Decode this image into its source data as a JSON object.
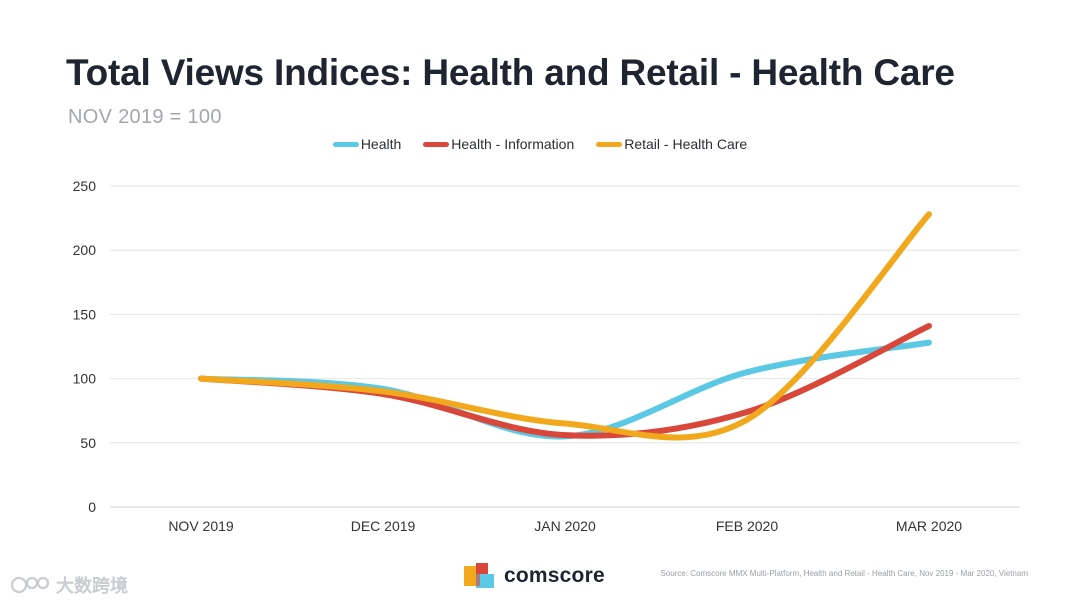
{
  "title": "Total Views Indices: Health and Retail - Health Care",
  "subtitle": "NOV 2019 = 100",
  "colors": {
    "health": "#5bc8e4",
    "health_information": "#d9473b",
    "retail_health_care": "#f1a81d",
    "grid": "#e6e6e6",
    "tick": "#333333"
  },
  "chart_data": {
    "type": "line",
    "title": "Total Views Indices: Health and Retail - Health Care",
    "subtitle": "NOV 2019 = 100",
    "categories": [
      "NOV 2019",
      "DEC 2019",
      "JAN 2020",
      "FEB 2020",
      "MAR 2020"
    ],
    "y_ticks": [
      0,
      50,
      100,
      150,
      200,
      250
    ],
    "ylim": [
      0,
      250
    ],
    "grid": true,
    "legend_position": "top-center",
    "series": [
      {
        "name": "Health",
        "color": "#5bc8e4",
        "values": [
          100,
          92,
          55,
          105,
          128
        ]
      },
      {
        "name": "Health - Information",
        "color": "#d9473b",
        "values": [
          100,
          88,
          56,
          74,
          141
        ]
      },
      {
        "name": "Retail - Health Care",
        "color": "#f1a81d",
        "values": [
          100,
          90,
          65,
          68,
          228
        ]
      }
    ]
  },
  "logo": {
    "text": "comscore"
  },
  "source": "Source: Comscore MMX Multi-Platform, Health and Retail - Health Care, Nov 2019 - Mar 2020, Vietnam",
  "watermark": "大数跨境"
}
